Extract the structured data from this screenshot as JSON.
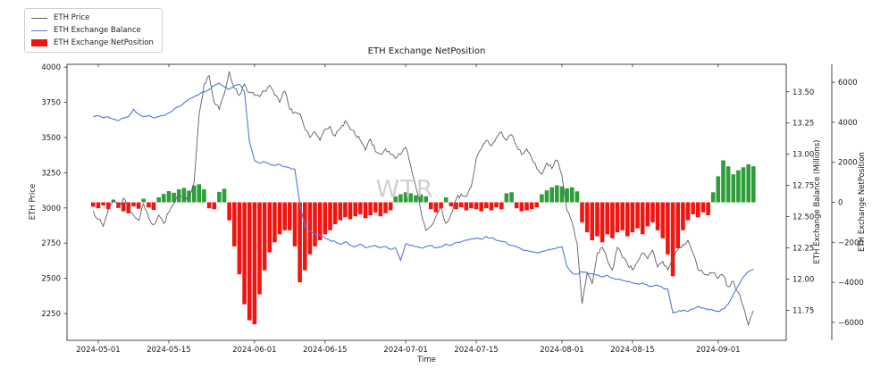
{
  "title": "ETH Exchange NetPosition",
  "watermark": "WTR",
  "legend": {
    "items": [
      {
        "label": "ETH Price",
        "swatch": "line",
        "color": "#5f5f5f"
      },
      {
        "label": "ETH Exchange Balance",
        "swatch": "line",
        "color": "#5577dd"
      },
      {
        "label": "ETH Exchange NetPosition",
        "swatch": "patch",
        "color": "#f01510"
      }
    ]
  },
  "axes": {
    "x": {
      "label": "Time",
      "range": [
        -5.2,
        137.5
      ],
      "start_date": "2024-04-30",
      "ticks": [
        {
          "day": 1,
          "label": "2024-05-01"
        },
        {
          "day": 15,
          "label": "2024-05-15"
        },
        {
          "day": 32,
          "label": "2024-06-01"
        },
        {
          "day": 46,
          "label": "2024-06-15"
        },
        {
          "day": 62,
          "label": "2024-07-01"
        },
        {
          "day": 76,
          "label": "2024-07-15"
        },
        {
          "day": 93,
          "label": "2024-08-01"
        },
        {
          "day": 107,
          "label": "2024-08-15"
        },
        {
          "day": 124,
          "label": "2024-09-01"
        }
      ]
    },
    "price": {
      "label": "ETH Price",
      "range": [
        2060,
        4020
      ],
      "ticks": [
        {
          "v": 2250,
          "label": "2250"
        },
        {
          "v": 2500,
          "label": "2500"
        },
        {
          "v": 2750,
          "label": "2750"
        },
        {
          "v": 3000,
          "label": "3000"
        },
        {
          "v": 3250,
          "label": "3250"
        },
        {
          "v": 3500,
          "label": "3500"
        },
        {
          "v": 3750,
          "label": "3750"
        },
        {
          "v": 4000,
          "label": "4000"
        }
      ]
    },
    "balance": {
      "label": "ETH Exchange Balance (Millions)",
      "range": [
        11.51,
        13.72
      ],
      "ticks": [
        {
          "v": 11.75,
          "label": "11.75"
        },
        {
          "v": 12.0,
          "label": "12.00"
        },
        {
          "v": 12.25,
          "label": "12.25"
        },
        {
          "v": 12.5,
          "label": "12.50"
        },
        {
          "v": 12.75,
          "label": "12.75"
        },
        {
          "v": 13.0,
          "label": "13.00"
        },
        {
          "v": 13.25,
          "label": "13.25"
        },
        {
          "v": 13.5,
          "label": "13.50"
        }
      ]
    },
    "netposition": {
      "label": "ETH Exchange NetPosition",
      "range": [
        -6900,
        6900
      ],
      "ticks": [
        {
          "v": -6000,
          "label": "−6000"
        },
        {
          "v": -4000,
          "label": "−4000"
        },
        {
          "v": -2000,
          "label": "−2000"
        },
        {
          "v": 0,
          "label": "0"
        },
        {
          "v": 2000,
          "label": "2000"
        },
        {
          "v": 4000,
          "label": "4000"
        },
        {
          "v": 6000,
          "label": "6000"
        }
      ]
    }
  },
  "chart_data": {
    "type": "line+bar",
    "x_unit": "days since 2024-04-30 (daily points)",
    "series": [
      {
        "name": "ETH Price",
        "type": "line",
        "axis": "price",
        "color": "#5f5f5f",
        "values": [
          2980,
          2920,
          2870,
          2990,
          3060,
          3010,
          3070,
          3000,
          2950,
          2910,
          3030,
          2930,
          2880,
          2950,
          2890,
          2970,
          3030,
          3090,
          3060,
          3080,
          3180,
          3660,
          3880,
          3940,
          3750,
          3700,
          3810,
          3970,
          3850,
          3800,
          3880,
          3820,
          3800,
          3790,
          3830,
          3870,
          3800,
          3750,
          3830,
          3700,
          3680,
          3670,
          3560,
          3500,
          3540,
          3480,
          3560,
          3580,
          3510,
          3560,
          3620,
          3560,
          3520,
          3480,
          3410,
          3490,
          3400,
          3380,
          3420,
          3380,
          3350,
          3380,
          3430,
          3300,
          3150,
          2980,
          2840,
          2870,
          2940,
          3010,
          2890,
          2960,
          3060,
          3100,
          3080,
          3150,
          3350,
          3420,
          3480,
          3440,
          3500,
          3540,
          3480,
          3520,
          3440,
          3380,
          3420,
          3350,
          3280,
          3240,
          3320,
          3280,
          3340,
          3230,
          2980,
          2900,
          2750,
          2320,
          2540,
          2460,
          2680,
          2720,
          2630,
          2560,
          2720,
          2650,
          2600,
          2560,
          2620,
          2680,
          2640,
          2700,
          2580,
          2620,
          2560,
          2640,
          2700,
          2740,
          2770,
          2680,
          2560,
          2540,
          2520,
          2540,
          2500,
          2520,
          2440,
          2480,
          2400,
          2300,
          2170,
          2270
        ]
      },
      {
        "name": "ETH Exchange Balance",
        "type": "line",
        "axis": "balance",
        "color": "#5577dd",
        "values": [
          13.3,
          13.31,
          13.29,
          13.3,
          13.28,
          13.27,
          13.29,
          13.3,
          13.36,
          13.32,
          13.3,
          13.31,
          13.29,
          13.3,
          13.31,
          13.33,
          13.36,
          13.38,
          13.41,
          13.44,
          13.46,
          13.48,
          13.5,
          13.52,
          13.55,
          13.57,
          13.54,
          13.52,
          13.55,
          13.56,
          13.5,
          13.1,
          12.95,
          12.93,
          12.94,
          12.92,
          12.91,
          12.92,
          12.9,
          12.89,
          12.88,
          12.6,
          12.42,
          12.38,
          12.36,
          12.35,
          12.33,
          12.31,
          12.3,
          12.28,
          12.3,
          12.27,
          12.26,
          12.28,
          12.25,
          12.26,
          12.27,
          12.25,
          12.26,
          12.24,
          12.25,
          12.15,
          12.28,
          12.27,
          12.26,
          12.25,
          12.26,
          12.27,
          12.25,
          12.26,
          12.28,
          12.27,
          12.29,
          12.3,
          12.31,
          12.32,
          12.33,
          12.32,
          12.34,
          12.33,
          12.31,
          12.3,
          12.29,
          12.27,
          12.26,
          12.24,
          12.23,
          12.22,
          12.21,
          12.22,
          12.23,
          12.24,
          12.25,
          12.26,
          12.1,
          12.05,
          12.04,
          12.06,
          12.05,
          12.04,
          12.03,
          12.02,
          12.03,
          12.01,
          12.0,
          11.99,
          11.98,
          11.97,
          11.96,
          11.97,
          11.95,
          11.94,
          11.95,
          11.93,
          11.92,
          11.73,
          11.74,
          11.75,
          11.74,
          11.76,
          11.78,
          11.77,
          11.76,
          11.75,
          11.74,
          11.76,
          11.8,
          11.88,
          11.95,
          12.02,
          12.06,
          12.08
        ]
      },
      {
        "name": "ETH Exchange NetPosition",
        "type": "bar",
        "axis": "netposition",
        "color_positive": "#2f9e3a",
        "color_negative": "#f01510",
        "values": [
          -220,
          -300,
          -150,
          -350,
          120,
          -280,
          -450,
          -550,
          -200,
          -320,
          180,
          -260,
          -380,
          250,
          420,
          560,
          480,
          650,
          720,
          580,
          840,
          900,
          650,
          -300,
          -350,
          520,
          680,
          -900,
          -2200,
          -3600,
          -5100,
          -5900,
          -6100,
          -4600,
          -3400,
          -2500,
          -2000,
          -1600,
          -1400,
          -1400,
          -2200,
          -4000,
          -3400,
          -2600,
          -2200,
          -1900,
          -1600,
          -1400,
          -1100,
          -900,
          -750,
          -850,
          -700,
          -600,
          -800,
          -650,
          -500,
          -700,
          -550,
          -400,
          300,
          400,
          500,
          450,
          350,
          400,
          300,
          -350,
          -500,
          -300,
          250,
          -200,
          -350,
          -250,
          -400,
          -300,
          -350,
          -450,
          -300,
          -400,
          -250,
          -350,
          450,
          500,
          -300,
          -450,
          -400,
          -350,
          -250,
          400,
          600,
          750,
          850,
          800,
          700,
          750,
          550,
          -1000,
          -1500,
          -1900,
          -1700,
          -2000,
          -1600,
          -1800,
          -1500,
          -1400,
          -1700,
          -1500,
          -1300,
          -1600,
          -1200,
          -1000,
          -1400,
          -1800,
          -2600,
          -3700,
          -2300,
          -1400,
          -900,
          -600,
          -750,
          -500,
          -650,
          500,
          1300,
          2100,
          1800,
          1400,
          1600,
          1750,
          1900,
          1800
        ]
      }
    ]
  }
}
